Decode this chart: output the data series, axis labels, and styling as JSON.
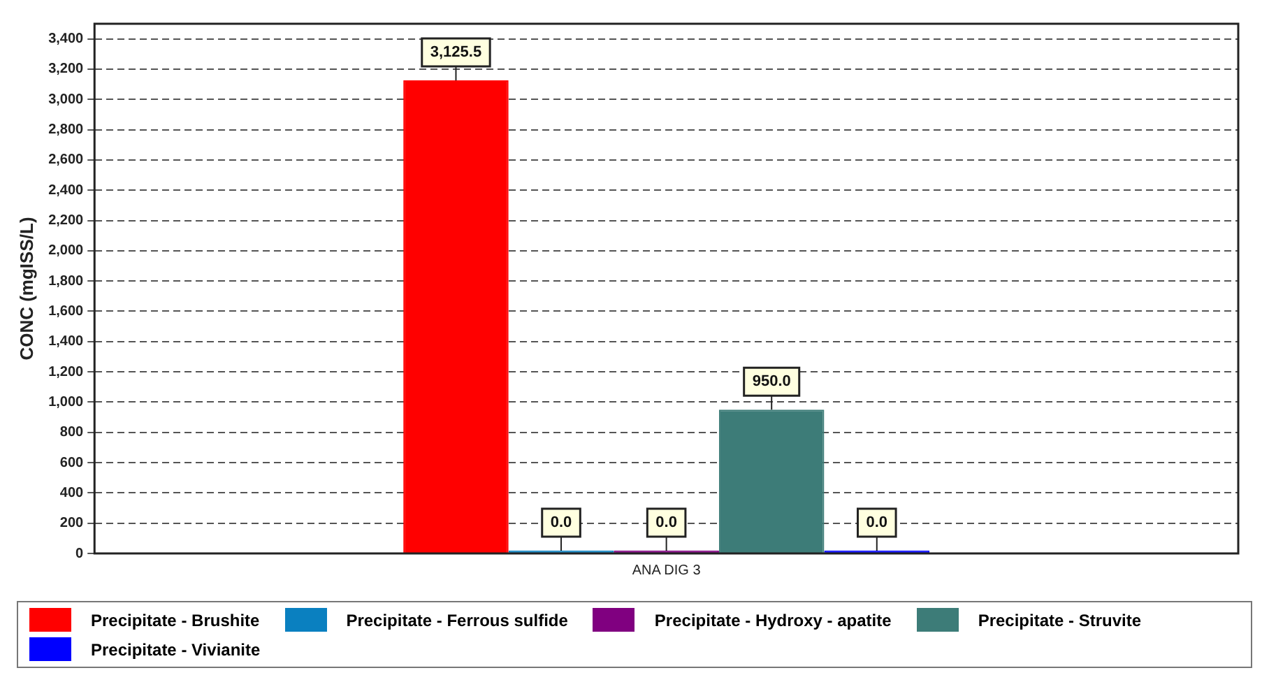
{
  "chart_data": {
    "type": "bar",
    "ylabel": "CONC (mgISS/L)",
    "categories": [
      "ANA DIG 3"
    ],
    "series": [
      {
        "name": "Precipitate - Brushite",
        "color": "#ff0000",
        "values": [
          3125.5
        ],
        "value_labels": [
          "3,125.5"
        ]
      },
      {
        "name": "Precipitate - Ferrous sulfide",
        "color": "#0a80c0",
        "values": [
          0
        ],
        "value_labels": [
          "0.0"
        ]
      },
      {
        "name": "Precipitate - Hydroxy - apatite",
        "color": "#800080",
        "values": [
          0
        ],
        "value_labels": [
          "0.0"
        ]
      },
      {
        "name": "Precipitate - Struvite",
        "color": "#3d7c78",
        "values": [
          950
        ],
        "value_labels": [
          "950.0"
        ]
      },
      {
        "name": "Precipitate - Vivianite",
        "color": "#0000ff",
        "values": [
          0
        ],
        "value_labels": [
          "0.0"
        ]
      }
    ],
    "ylim": [
      0,
      3500
    ],
    "yticks": [
      {
        "value": 0,
        "label": "0"
      },
      {
        "value": 200,
        "label": "200"
      },
      {
        "value": 400,
        "label": "400"
      },
      {
        "value": 600,
        "label": "600"
      },
      {
        "value": 800,
        "label": "800"
      },
      {
        "value": 1000,
        "label": "1,000"
      },
      {
        "value": 1200,
        "label": "1,200"
      },
      {
        "value": 1400,
        "label": "1,400"
      },
      {
        "value": 1600,
        "label": "1,600"
      },
      {
        "value": 1800,
        "label": "1,800"
      },
      {
        "value": 2000,
        "label": "2,000"
      },
      {
        "value": 2200,
        "label": "2,200"
      },
      {
        "value": 2400,
        "label": "2,400"
      },
      {
        "value": 2600,
        "label": "2,600"
      },
      {
        "value": 2800,
        "label": "2,800"
      },
      {
        "value": 3000,
        "label": "3,000"
      },
      {
        "value": 3200,
        "label": "3,200"
      },
      {
        "value": 3400,
        "label": "3,400"
      }
    ],
    "grid": "y",
    "legend": "bottom"
  }
}
